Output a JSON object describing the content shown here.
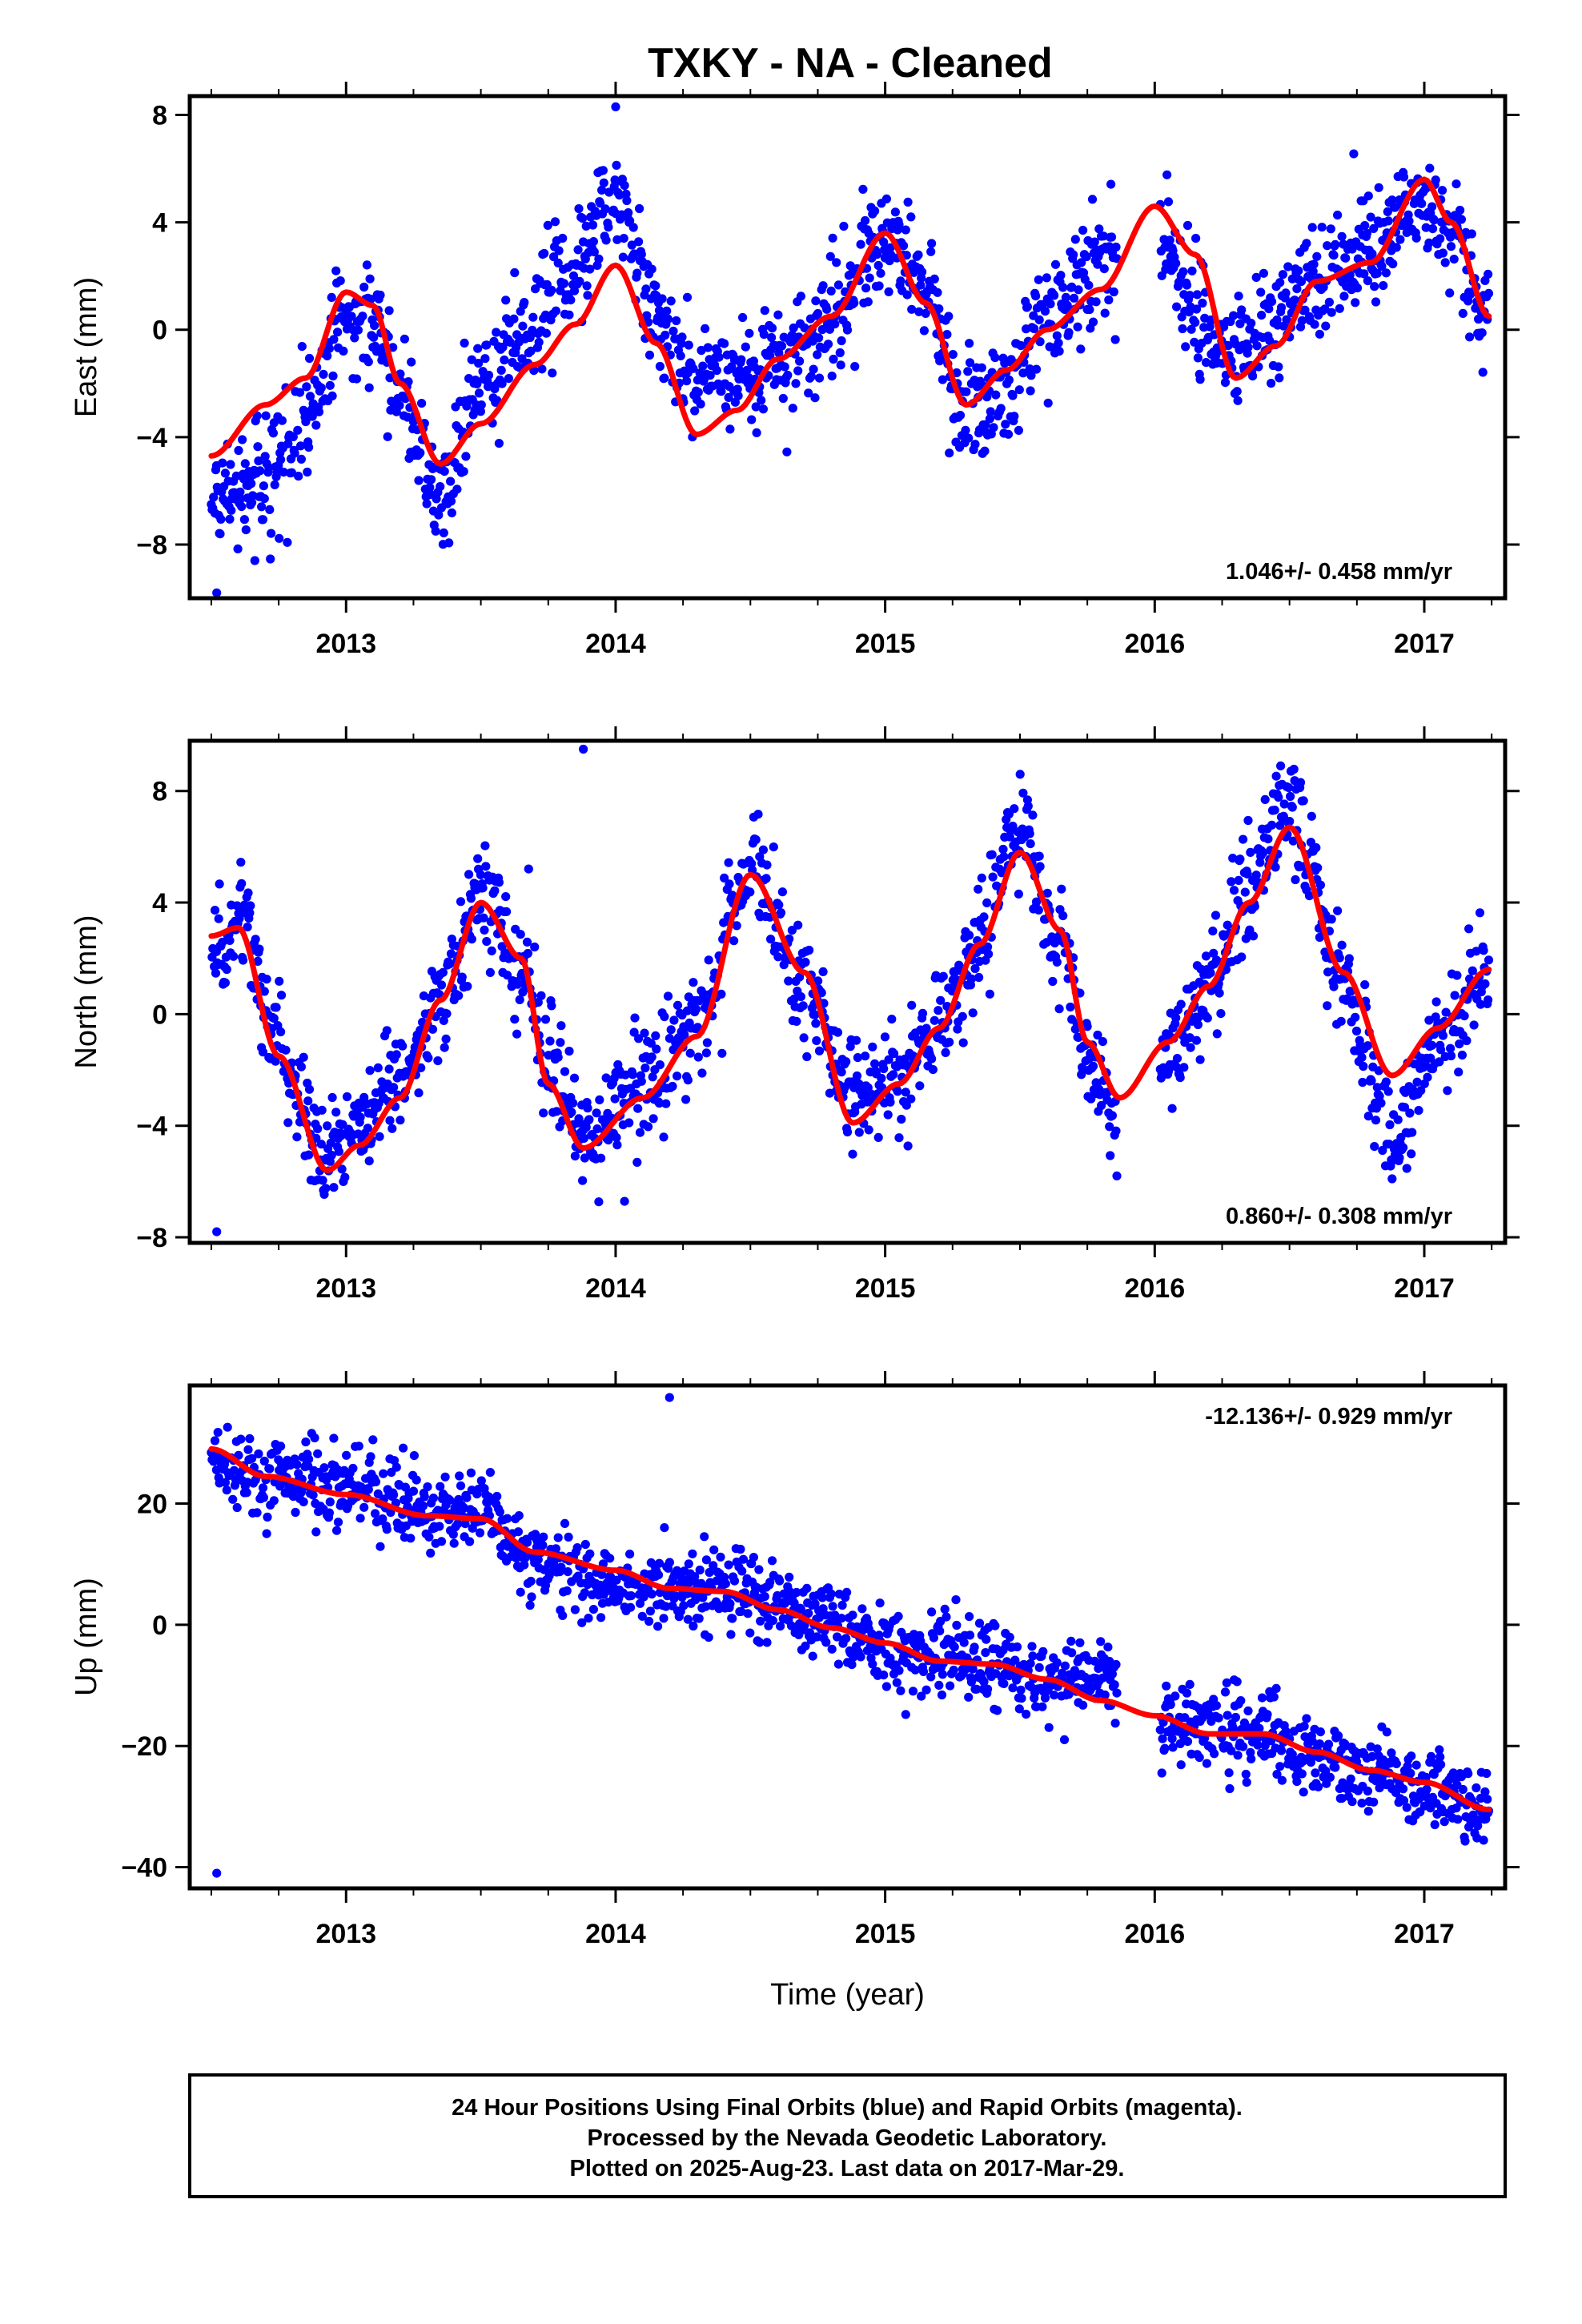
{
  "title": "TXKY  - NA - Cleaned",
  "footer": {
    "lines": [
      "24 Hour Positions Using Final Orbits (blue) and Rapid Orbits (magenta).",
      "Processed by the Nevada Geodetic Laboratory.",
      "Plotted on 2025-Aug-23. Last data on 2017-Mar-29."
    ]
  },
  "colors": {
    "points": "#0000ff",
    "fit": "#ff0000",
    "frame": "#000000"
  },
  "chart_data": [
    {
      "type": "scatter",
      "component": "east",
      "ylabel": "East (mm)",
      "xlabel": "",
      "rate_label": "1.046+/- 0.458 mm/yr",
      "rate_position": "bottom-right",
      "xlim": [
        2012.42,
        2017.3
      ],
      "ylim": [
        -10,
        8.7
      ],
      "xticks": [
        2013,
        2014,
        2015,
        2016,
        2017
      ],
      "xtick_labels": [
        "2013",
        "2014",
        "2015",
        "2016",
        "2017"
      ],
      "yticks": [
        -8,
        -4,
        0,
        4,
        8
      ],
      "ytick_labels": [
        "−8",
        "−4",
        "0",
        "4",
        "8"
      ],
      "grid": false,
      "data_start": 2012.5,
      "data_end": 2017.24,
      "gap": [
        2015.86,
        2016.02
      ],
      "fit_series": {
        "name": "",
        "x": [
          2012.5,
          2012.7,
          2012.85,
          2013.0,
          2013.1,
          2013.2,
          2013.35,
          2013.5,
          2013.7,
          2013.85,
          2014.0,
          2014.15,
          2014.3,
          2014.45,
          2014.6,
          2014.8,
          2015.0,
          2015.15,
          2015.3,
          2015.45,
          2015.6,
          2015.8,
          2016.0,
          2016.15,
          2016.3,
          2016.45,
          2016.6,
          2016.8,
          2017.0,
          2017.1,
          2017.24
        ],
        "y": [
          -4.7,
          -2.8,
          -1.8,
          1.4,
          0.9,
          -2.0,
          -5.0,
          -3.5,
          -1.3,
          0.2,
          2.4,
          -0.5,
          -3.9,
          -3.0,
          -1.1,
          0.5,
          3.6,
          1.0,
          -2.8,
          -1.5,
          0.0,
          1.5,
          4.6,
          2.8,
          -1.8,
          -0.6,
          1.8,
          2.5,
          5.6,
          4.0,
          0.5
        ]
      },
      "scatter_series": {
        "name": "",
        "x": [
          2012.5,
          2012.7,
          2012.85,
          2013.0,
          2013.1,
          2013.2,
          2013.35,
          2013.5,
          2013.7,
          2013.85,
          2014.0,
          2014.15,
          2014.3,
          2014.45,
          2014.6,
          2014.8,
          2015.0,
          2015.15,
          2015.3,
          2015.45,
          2015.6,
          2015.8,
          2016.0,
          2016.15,
          2016.3,
          2016.45,
          2016.6,
          2016.8,
          2017.0,
          2017.1,
          2017.24
        ],
        "y": [
          -6.5,
          -5.5,
          -3.3,
          0.5,
          0.0,
          -2.3,
          -6.5,
          -2.0,
          0.5,
          2.5,
          4.8,
          0.8,
          -2.0,
          -1.8,
          -1.2,
          0.5,
          3.6,
          1.5,
          -3.0,
          -2.0,
          0.5,
          2.5,
          4.0,
          0.5,
          -1.0,
          0.5,
          2.0,
          3.0,
          5.0,
          3.5,
          0.5
        ],
        "noise": 1.05,
        "outlier_low": -9.8,
        "outlier_high": 8.3
      }
    },
    {
      "type": "scatter",
      "component": "north",
      "ylabel": "North (mm)",
      "xlabel": "",
      "rate_label": "0.860+/- 0.308 mm/yr",
      "rate_position": "bottom-right",
      "xlim": [
        2012.42,
        2017.3
      ],
      "ylim": [
        -8.2,
        9.8
      ],
      "xticks": [
        2013,
        2014,
        2015,
        2016,
        2017
      ],
      "xtick_labels": [
        "2013",
        "2014",
        "2015",
        "2016",
        "2017"
      ],
      "yticks": [
        -8,
        -4,
        0,
        4,
        8
      ],
      "ytick_labels": [
        "−8",
        "−4",
        "0",
        "4",
        "8"
      ],
      "grid": false,
      "data_start": 2012.5,
      "data_end": 2017.24,
      "gap": [
        2015.86,
        2016.02
      ],
      "fit_series": {
        "name": "",
        "x": [
          2012.5,
          2012.6,
          2012.75,
          2012.93,
          2013.05,
          2013.2,
          2013.35,
          2013.5,
          2013.65,
          2013.75,
          2013.88,
          2014.1,
          2014.3,
          2014.5,
          2014.7,
          2014.88,
          2015.05,
          2015.2,
          2015.35,
          2015.5,
          2015.65,
          2015.75,
          2015.87,
          2016.05,
          2016.2,
          2016.35,
          2016.5,
          2016.7,
          2016.88,
          2017.05,
          2017.24
        ],
        "y": [
          2.8,
          3.1,
          -1.5,
          -5.6,
          -4.7,
          -3.0,
          0.5,
          4.0,
          2.0,
          -2.5,
          -4.8,
          -3.0,
          -0.8,
          5.0,
          1.5,
          -3.9,
          -2.5,
          -0.5,
          2.5,
          5.8,
          3.0,
          -1.0,
          -3.0,
          -1.0,
          1.0,
          4.0,
          6.7,
          1.5,
          -2.2,
          -0.5,
          1.6
        ]
      },
      "scatter_series": {
        "name": "",
        "x": [
          2012.5,
          2012.6,
          2012.75,
          2012.93,
          2013.05,
          2013.2,
          2013.35,
          2013.5,
          2013.65,
          2013.75,
          2013.88,
          2014.1,
          2014.3,
          2014.5,
          2014.7,
          2014.88,
          2015.05,
          2015.2,
          2015.35,
          2015.5,
          2015.65,
          2015.75,
          2015.87,
          2016.05,
          2016.2,
          2016.35,
          2016.5,
          2016.7,
          2016.88,
          2017.05,
          2017.24
        ],
        "y": [
          1.5,
          3.5,
          -1.0,
          -5.0,
          -4.0,
          -2.5,
          0.5,
          4.5,
          1.5,
          -2.0,
          -4.5,
          -2.5,
          -0.5,
          5.5,
          1.0,
          -3.0,
          -2.5,
          -0.5,
          2.5,
          6.5,
          2.5,
          -1.5,
          -4.5,
          -1.5,
          1.0,
          4.5,
          7.5,
          1.0,
          -4.5,
          -1.0,
          1.5
        ],
        "noise": 0.95,
        "outlier_low": -7.8,
        "outlier_high": 9.5
      }
    },
    {
      "type": "scatter",
      "component": "up",
      "ylabel": "Up (mm)",
      "xlabel": "Time (year)",
      "rate_label": "-12.136+/- 0.929 mm/yr",
      "rate_position": "top-right",
      "xlim": [
        2012.42,
        2017.3
      ],
      "ylim": [
        -43.5,
        39.5
      ],
      "xticks": [
        2013,
        2014,
        2015,
        2016,
        2017
      ],
      "xtick_labels": [
        "2013",
        "2014",
        "2015",
        "2016",
        "2017"
      ],
      "yticks": [
        -40,
        -20,
        0,
        20
      ],
      "ytick_labels": [
        "−40",
        "−20",
        "0",
        "20"
      ],
      "grid": false,
      "data_start": 2012.5,
      "data_end": 2017.24,
      "gap": [
        2015.86,
        2016.02
      ],
      "fit_series": {
        "name": "",
        "x": [
          2012.5,
          2012.7,
          2013.0,
          2013.3,
          2013.5,
          2013.7,
          2014.0,
          2014.2,
          2014.4,
          2014.6,
          2014.8,
          2015.0,
          2015.2,
          2015.4,
          2015.6,
          2015.8,
          2016.0,
          2016.2,
          2016.4,
          2016.6,
          2016.8,
          2017.0,
          2017.24
        ],
        "y": [
          29.0,
          24.5,
          21.5,
          18.0,
          17.5,
          12.0,
          9.0,
          6.0,
          5.5,
          2.5,
          -0.5,
          -3.0,
          -6.0,
          -6.5,
          -9.0,
          -12.5,
          -15.0,
          -18.0,
          -18.0,
          -21.0,
          -24.0,
          -26.0,
          -30.5
        ]
      },
      "scatter_series": {
        "name": "",
        "x": [
          2012.5,
          2012.7,
          2013.0,
          2013.3,
          2013.5,
          2013.7,
          2014.0,
          2014.2,
          2014.4,
          2014.6,
          2014.8,
          2015.0,
          2015.2,
          2015.4,
          2015.6,
          2015.8,
          2016.0,
          2016.2,
          2016.4,
          2016.6,
          2016.8,
          2017.0,
          2017.24
        ],
        "y": [
          27.0,
          24.0,
          23.0,
          18.0,
          20.0,
          10.0,
          7.0,
          5.5,
          6.0,
          3.0,
          0.0,
          -3.0,
          -6.0,
          -7.0,
          -9.0,
          -8.0,
          -16.0,
          -17.0,
          -18.0,
          -22.0,
          -24.0,
          -27.0,
          -30.5
        ],
        "noise": 3.3,
        "outlier_low": -41.0,
        "outlier_high": 37.5
      }
    }
  ]
}
